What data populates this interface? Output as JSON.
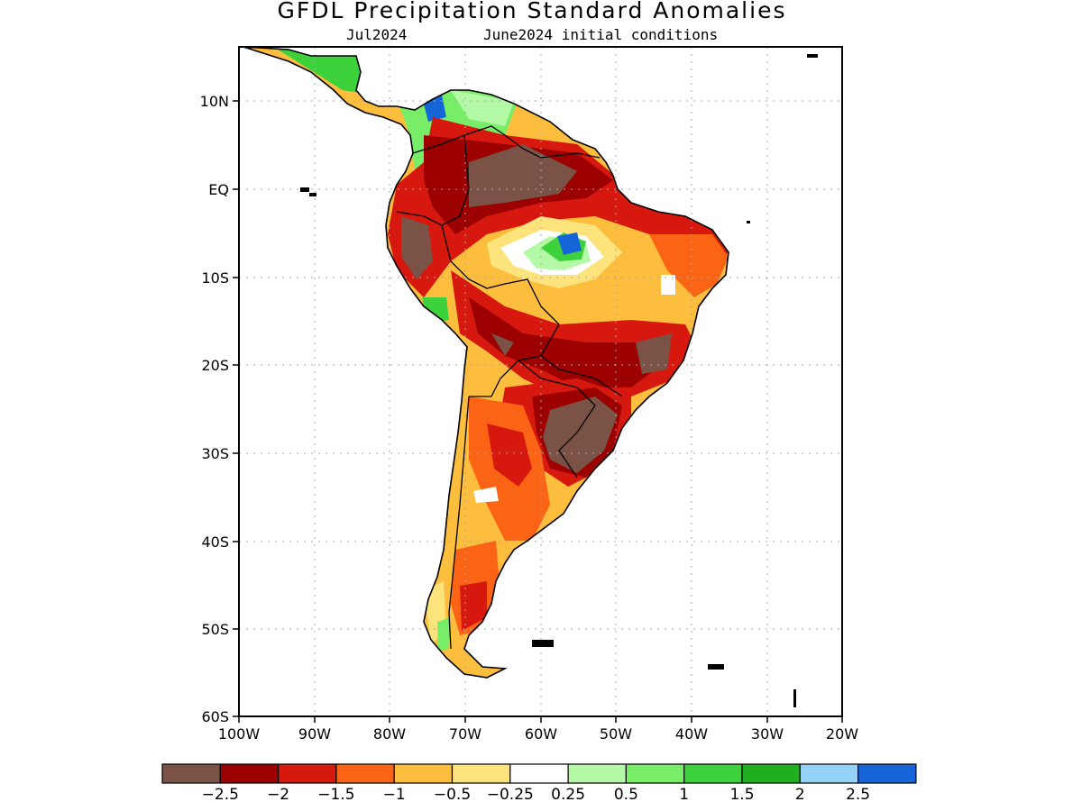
{
  "title": "GFDL Precipitation Standard Anomalies",
  "subtitle_left": "Jul2024",
  "subtitle_right": "June2024 initial conditions",
  "lat_ticks": [
    "10N",
    "EQ",
    "10S",
    "20S",
    "30S",
    "40S",
    "50S",
    "60S"
  ],
  "lon_ticks": [
    "100W",
    "90W",
    "80W",
    "70W",
    "60W",
    "50W",
    "40W",
    "30W",
    "20W"
  ],
  "colorbar": {
    "colors": [
      "#7b5346",
      "#9c0000",
      "#d7180f",
      "#fa6414",
      "#fdbd3d",
      "#fde37c",
      "#ffffff",
      "#b4f9a6",
      "#78ee68",
      "#3dd13b",
      "#1eb01f",
      "#94d2f8",
      "#1665d8"
    ],
    "labels": [
      "−2.5",
      "−2",
      "−1.5",
      "−1",
      "−0.5",
      "−0.25",
      "0.25",
      "0.5",
      "1",
      "1.5",
      "2",
      "2.5"
    ]
  }
}
